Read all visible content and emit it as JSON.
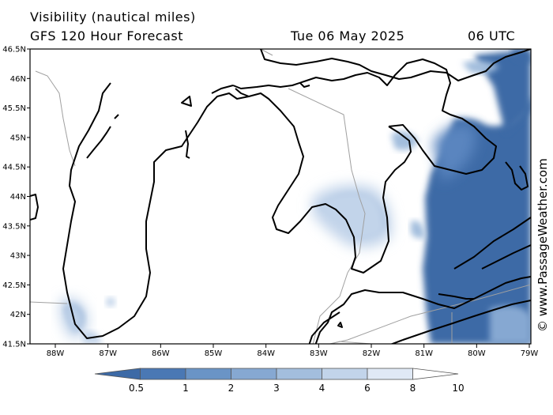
{
  "title": {
    "line1": "Visibility (nautical miles)",
    "line2": "GFS 120 Hour Forecast",
    "date": "Tue 06 May 2025",
    "time": "06 UTC"
  },
  "axes": {
    "lat_ticks": [
      "46.5N",
      "46N",
      "45.5N",
      "45N",
      "44.5N",
      "44N",
      "43.5N",
      "43N",
      "42.5N",
      "42N",
      "41.5N"
    ],
    "lon_ticks": [
      "88W",
      "87W",
      "86W",
      "85W",
      "84W",
      "83W",
      "82W",
      "81W",
      "80W",
      "79W"
    ]
  },
  "colorbar": {
    "labels": [
      "0.5",
      "1",
      "2",
      "3",
      "4",
      "6",
      "8",
      "10"
    ],
    "colors": [
      "#3d6aa6",
      "#4a78b4",
      "#6a94c6",
      "#86a8d2",
      "#a3bedd",
      "#c2d4ea",
      "#e0e9f5",
      "#ffffff"
    ]
  },
  "credit": "© www.PassageWeather.com",
  "colors": {
    "coast": "#000000",
    "border": "#a0a0a0",
    "low_vis": "#3d6aa6"
  }
}
